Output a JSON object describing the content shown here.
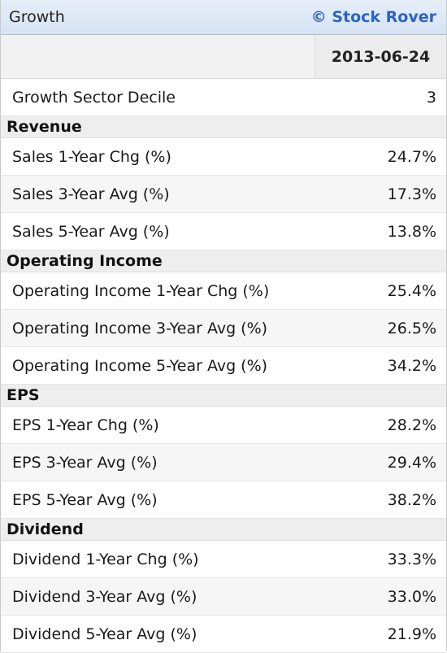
{
  "panel": {
    "title": "Growth",
    "brand": "© Stock Rover",
    "date_header": "2013-06-24"
  },
  "top_row": {
    "label": "Growth Sector Decile",
    "value": "3"
  },
  "sections": [
    {
      "title": "Revenue",
      "rows": [
        {
          "label": "Sales 1-Year Chg (%)",
          "value": "24.7%"
        },
        {
          "label": "Sales 3-Year Avg (%)",
          "value": "17.3%"
        },
        {
          "label": "Sales 5-Year Avg (%)",
          "value": "13.8%"
        }
      ]
    },
    {
      "title": "Operating Income",
      "rows": [
        {
          "label": "Operating Income 1-Year Chg (%)",
          "value": "25.4%"
        },
        {
          "label": "Operating Income 3-Year Avg (%)",
          "value": "26.5%"
        },
        {
          "label": "Operating Income 5-Year Avg (%)",
          "value": "34.2%"
        }
      ]
    },
    {
      "title": "EPS",
      "rows": [
        {
          "label": "EPS 1-Year Chg (%)",
          "value": "28.2%"
        },
        {
          "label": "EPS 3-Year Avg (%)",
          "value": "29.4%"
        },
        {
          "label": "EPS 5-Year Avg (%)",
          "value": "38.2%"
        }
      ]
    },
    {
      "title": "Dividend",
      "rows": [
        {
          "label": "Dividend 1-Year Chg (%)",
          "value": "33.3%"
        },
        {
          "label": "Dividend 3-Year Avg (%)",
          "value": "33.0%"
        },
        {
          "label": "Dividend 5-Year Avg (%)",
          "value": "21.9%"
        }
      ]
    }
  ],
  "colors": {
    "brand": "#2b63c6",
    "title_bar": "#d7e3f4"
  }
}
